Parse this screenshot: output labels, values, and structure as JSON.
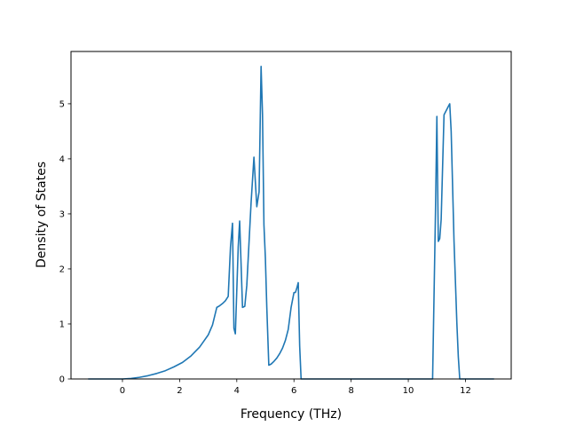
{
  "chart_data": {
    "type": "line",
    "title": "",
    "xlabel": "Frequency (THz)",
    "ylabel": "Density of States",
    "xlim": [
      -1.8,
      13.6
    ],
    "ylim": [
      0,
      5.95
    ],
    "xticks": [
      0,
      2,
      4,
      6,
      8,
      10,
      12
    ],
    "yticks": [
      0,
      1,
      2,
      3,
      4,
      5
    ],
    "grid": false,
    "legend": "none",
    "line_color": "#1f77b4",
    "series": [
      {
        "x": [
          -1.2,
          -0.6,
          0,
          0.3,
          0.6,
          0.9,
          1.2,
          1.5,
          1.8,
          2.1,
          2.4,
          2.7,
          3.0,
          3.15,
          3.3,
          3.4,
          3.5,
          3.6,
          3.7,
          3.78,
          3.85,
          3.9,
          3.95,
          4.05,
          4.1,
          4.2,
          4.28,
          4.35,
          4.4,
          4.5,
          4.6,
          4.7,
          4.78,
          4.85,
          4.9,
          4.95,
          5.0,
          5.05,
          5.12,
          5.2,
          5.3,
          5.4,
          5.5,
          5.6,
          5.7,
          5.8,
          5.9,
          6.0,
          6.05,
          6.1,
          6.15,
          6.2,
          6.25,
          6.3,
          6.35,
          6.4,
          6.5,
          7.0,
          8.0,
          9.0,
          10.0,
          10.5,
          10.85,
          10.95,
          11.0,
          11.05,
          11.1,
          11.15,
          11.25,
          11.35,
          11.45,
          11.5,
          11.6,
          11.7,
          11.75,
          11.8,
          12.0,
          12.5,
          13.0
        ],
        "y": [
          0,
          0,
          0,
          0.01,
          0.03,
          0.06,
          0.1,
          0.15,
          0.22,
          0.3,
          0.42,
          0.58,
          0.8,
          0.98,
          1.3,
          1.33,
          1.37,
          1.42,
          1.5,
          2.4,
          2.83,
          0.92,
          0.82,
          2.4,
          2.87,
          1.3,
          1.32,
          1.7,
          2.2,
          3.2,
          4.03,
          3.13,
          3.4,
          5.68,
          4.8,
          2.8,
          2.2,
          1.3,
          0.25,
          0.27,
          0.32,
          0.38,
          0.46,
          0.56,
          0.7,
          0.9,
          1.3,
          1.57,
          1.57,
          1.65,
          1.75,
          0.6,
          0,
          0,
          0,
          0,
          0,
          0,
          0,
          0,
          0,
          0,
          0,
          3.0,
          4.77,
          2.5,
          2.55,
          2.9,
          4.8,
          4.9,
          5.0,
          4.5,
          2.5,
          1.0,
          0.4,
          0,
          0,
          0,
          0
        ]
      }
    ]
  }
}
